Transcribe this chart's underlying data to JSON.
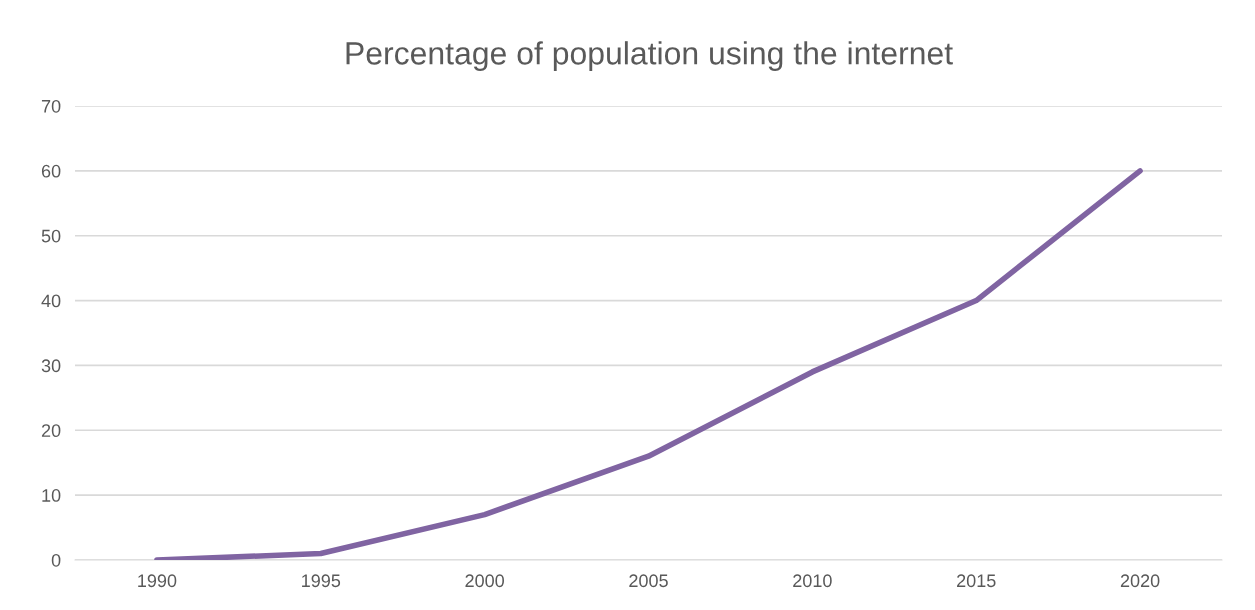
{
  "chart_data": {
    "type": "line",
    "title": "Percentage of population using the internet",
    "categories": [
      "1990",
      "1995",
      "2000",
      "2005",
      "2010",
      "2015",
      "2020"
    ],
    "series": [
      {
        "color": "#8064a2",
        "values": [
          0,
          1,
          7,
          16,
          29,
          40,
          60
        ]
      }
    ],
    "ylim": [
      0,
      70
    ],
    "yticks": [
      0,
      10,
      20,
      30,
      40,
      50,
      60,
      70
    ],
    "grid": "y",
    "legend": false,
    "marker": "none",
    "line_style": "solid"
  }
}
